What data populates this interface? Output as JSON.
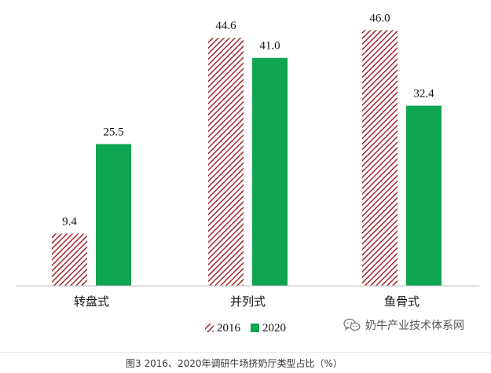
{
  "chart_data": {
    "type": "bar",
    "categories": [
      "转盘式",
      "并列式",
      "鱼骨式"
    ],
    "series": [
      {
        "name": "2016",
        "values": [
          9.4,
          44.6,
          46.0
        ],
        "labels": [
          "9.4",
          "44.6",
          "46.0"
        ],
        "color": "#a0282d",
        "pattern": "diagonal-hatch"
      },
      {
        "name": "2020",
        "values": [
          25.5,
          41.0,
          32.4
        ],
        "labels": [
          "25.5",
          "41.0",
          "32.4"
        ],
        "color": "#10a550",
        "pattern": "solid"
      }
    ],
    "ylim": [
      0,
      50
    ],
    "grid": false,
    "legend": "bottom-center",
    "caption": "图3  2016、2020年调研牛场挤奶厅类型占比（%）"
  },
  "watermark": {
    "text": "奶牛产业技术体系网",
    "icon": "wechat-icon"
  }
}
